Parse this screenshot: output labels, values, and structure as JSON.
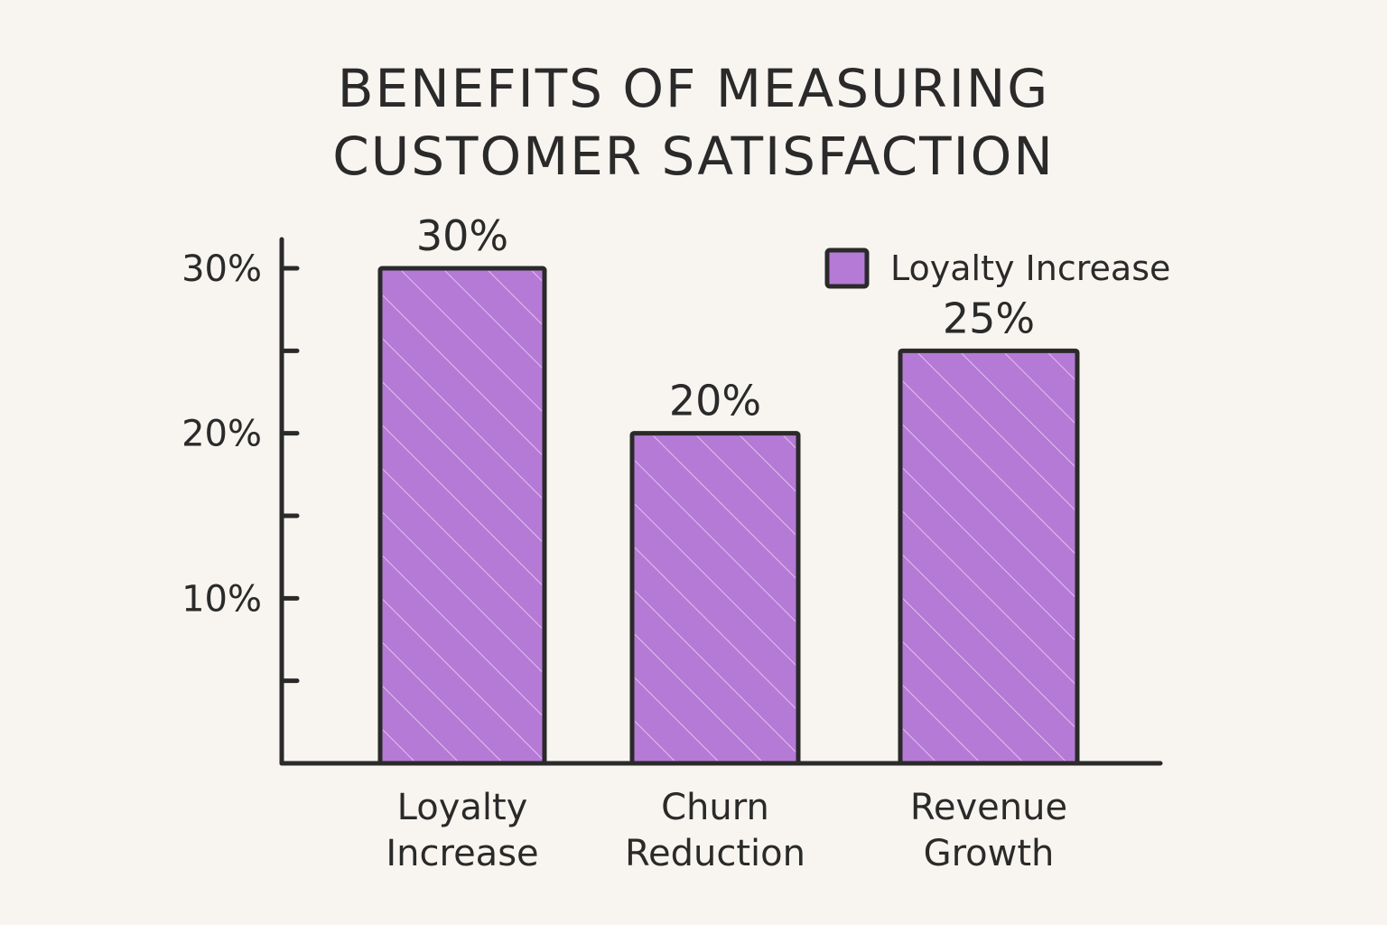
{
  "chart_data": {
    "type": "bar",
    "title_lines": [
      "BENEFITS OF MEASURING",
      "CUSTOMER SATISFACTION"
    ],
    "categories": [
      [
        "Loyalty",
        "Increase"
      ],
      [
        "Churn",
        "Reduction"
      ],
      [
        "Revenue",
        "Growth"
      ]
    ],
    "values": [
      30,
      20,
      25
    ],
    "data_labels": [
      "30%",
      "20%",
      "25%"
    ],
    "yticks": [
      10,
      20,
      30
    ],
    "ytick_labels": [
      "10%",
      "20%",
      "30%"
    ],
    "minor_ticks": [
      5,
      15,
      25
    ],
    "ylim": [
      0,
      30
    ],
    "xlabel": "",
    "ylabel": "",
    "grid": false,
    "legend": {
      "label": "Loyalty Increase",
      "placement": "top-right"
    },
    "colors": {
      "bar": "#b57ad6",
      "outline": "#2a2a2a",
      "background": "#f8f5f0",
      "hatch": "#ecd3f7"
    }
  }
}
